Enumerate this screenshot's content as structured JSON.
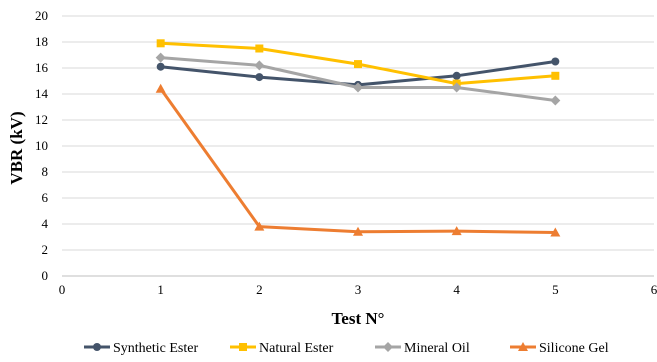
{
  "chart_data": {
    "type": "line",
    "xlabel": "Test N°",
    "ylabel": "VBR (kV)",
    "xlim": [
      0,
      6
    ],
    "ylim": [
      0,
      20
    ],
    "x_ticks": [
      0,
      1,
      2,
      3,
      4,
      5,
      6
    ],
    "y_ticks": [
      0,
      2,
      4,
      6,
      8,
      10,
      12,
      14,
      16,
      18,
      20
    ],
    "grid": "horizontal",
    "legend_position": "bottom",
    "x": [
      1,
      2,
      3,
      4,
      5
    ],
    "series": [
      {
        "name": "Synthetic Ester",
        "color": "#44546A",
        "marker": "circle",
        "values": [
          16.1,
          15.3,
          14.7,
          15.4,
          16.5
        ]
      },
      {
        "name": "Natural Ester",
        "color": "#FFC000",
        "marker": "square",
        "values": [
          17.9,
          17.5,
          16.3,
          14.8,
          15.4
        ]
      },
      {
        "name": "Mineral Oil",
        "color": "#A5A5A5",
        "marker": "diamond",
        "values": [
          16.8,
          16.2,
          14.5,
          14.5,
          13.5
        ]
      },
      {
        "name": "Silicone Gel",
        "color": "#ED7D31",
        "marker": "triangle",
        "values": [
          14.4,
          3.8,
          3.4,
          3.45,
          3.35
        ]
      }
    ]
  }
}
